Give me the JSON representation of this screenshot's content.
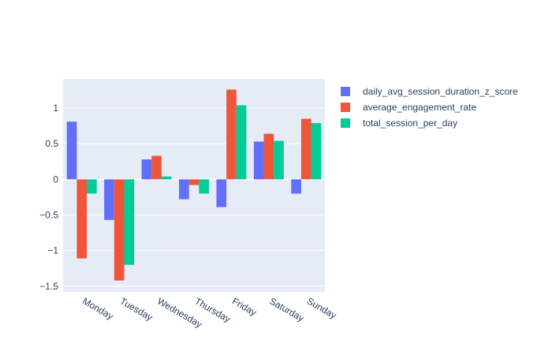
{
  "chart_data": {
    "type": "bar",
    "categories": [
      "Monday",
      "Tuesday",
      "Wednesday",
      "Thursday",
      "Friday",
      "Saturday",
      "Sunday"
    ],
    "series": [
      {
        "name": "daily_avg_session_duration_z_score",
        "color": "#636efa",
        "values": [
          0.81,
          -0.57,
          0.28,
          -0.28,
          -0.39,
          0.53,
          -0.2
        ]
      },
      {
        "name": "average_engagement_rate",
        "color": "#ef553b",
        "values": [
          -1.11,
          -1.42,
          0.33,
          -0.08,
          1.26,
          0.64,
          0.85
        ]
      },
      {
        "name": "total_session_per_day",
        "color": "#00cc96",
        "values": [
          -0.2,
          -1.2,
          0.04,
          -0.2,
          1.04,
          0.54,
          0.79
        ]
      }
    ],
    "ylim": [
      -1.58,
      1.41
    ],
    "yticks": [
      1,
      0.5,
      0,
      -0.5,
      -1,
      -1.5
    ],
    "ytick_labels": [
      "1",
      "0.5",
      "0",
      "−0.5",
      "−1",
      "−1.5"
    ],
    "grid": true,
    "legend_position": "top-right",
    "background_color": "#e5ecf6"
  }
}
